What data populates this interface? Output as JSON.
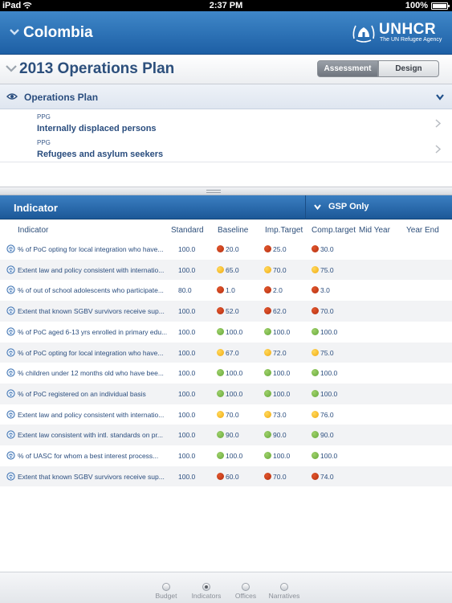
{
  "status_bar": {
    "carrier": "iPad",
    "time": "2:37 PM",
    "battery": "100%"
  },
  "header": {
    "country": "Colombia",
    "logo_name": "UNHCR",
    "logo_tagline": "The UN Refugee Agency"
  },
  "plan": {
    "title": "2013 Operations Plan",
    "segments": [
      {
        "label": "Assessment",
        "selected": true
      },
      {
        "label": "Design",
        "selected": false
      }
    ]
  },
  "operations": {
    "title": "Operations Plan",
    "ppgs": [
      {
        "type": "PPG",
        "name": "Internally displaced persons"
      },
      {
        "type": "PPG",
        "name": "Refugees and asylum seekers"
      }
    ]
  },
  "indicators": {
    "title": "Indicator",
    "filter": "GSP Only",
    "columns": [
      "Indicator",
      "Standard",
      "Baseline",
      "Imp.Target",
      "Comp.target",
      "Mid Year",
      "Year End"
    ],
    "rows": [
      {
        "indicator": "% of PoC opting for local integration who have...",
        "standard": "100.0",
        "baseline": "20.0",
        "baseline_status": "red",
        "imp_target": "25.0",
        "imp_status": "red",
        "comp_target": "30.0",
        "comp_status": "red"
      },
      {
        "indicator": "Extent law and policy consistent with internatio...",
        "standard": "100.0",
        "baseline": "65.0",
        "baseline_status": "yellow",
        "imp_target": "70.0",
        "imp_status": "yellow",
        "comp_target": "75.0",
        "comp_status": "yellow"
      },
      {
        "indicator": "% of out of school adolescents who participate...",
        "standard": "80.0",
        "baseline": "1.0",
        "baseline_status": "red",
        "imp_target": "2.0",
        "imp_status": "red",
        "comp_target": "3.0",
        "comp_status": "red"
      },
      {
        "indicator": "Extent that known SGBV survivors receive sup...",
        "standard": "100.0",
        "baseline": "52.0",
        "baseline_status": "red",
        "imp_target": "62.0",
        "imp_status": "red",
        "comp_target": "70.0",
        "comp_status": "red"
      },
      {
        "indicator": "% of PoC aged 6-13 yrs enrolled in primary edu...",
        "standard": "100.0",
        "baseline": "100.0",
        "baseline_status": "green",
        "imp_target": "100.0",
        "imp_status": "green",
        "comp_target": "100.0",
        "comp_status": "green"
      },
      {
        "indicator": "% of PoC opting for local integration who have...",
        "standard": "100.0",
        "baseline": "67.0",
        "baseline_status": "yellow",
        "imp_target": "72.0",
        "imp_status": "yellow",
        "comp_target": "75.0",
        "comp_status": "yellow"
      },
      {
        "indicator": "% children under 12 months old who have bee...",
        "standard": "100.0",
        "baseline": "100.0",
        "baseline_status": "green",
        "imp_target": "100.0",
        "imp_status": "green",
        "comp_target": "100.0",
        "comp_status": "green"
      },
      {
        "indicator": "% of PoC registered on an individual basis",
        "standard": "100.0",
        "baseline": "100.0",
        "baseline_status": "green",
        "imp_target": "100.0",
        "imp_status": "green",
        "comp_target": "100.0",
        "comp_status": "green"
      },
      {
        "indicator": "Extent law and policy consistent with internatio...",
        "standard": "100.0",
        "baseline": "70.0",
        "baseline_status": "yellow",
        "imp_target": "73.0",
        "imp_status": "yellow",
        "comp_target": "76.0",
        "comp_status": "yellow"
      },
      {
        "indicator": "Extent law consistent with intl. standards on pr...",
        "standard": "100.0",
        "baseline": "90.0",
        "baseline_status": "green",
        "imp_target": "90.0",
        "imp_status": "green",
        "comp_target": "90.0",
        "comp_status": "green"
      },
      {
        "indicator": "% of UASC for whom a best interest process...",
        "standard": "100.0",
        "baseline": "100.0",
        "baseline_status": "green",
        "imp_target": "100.0",
        "imp_status": "green",
        "comp_target": "100.0",
        "comp_status": "green"
      },
      {
        "indicator": "Extent that known SGBV survivors receive sup...",
        "standard": "100.0",
        "baseline": "60.0",
        "baseline_status": "red",
        "imp_target": "70.0",
        "imp_status": "red",
        "comp_target": "74.0",
        "comp_status": "red"
      }
    ]
  },
  "tabs": [
    {
      "label": "Budget",
      "active": false
    },
    {
      "label": "Indicators",
      "active": true
    },
    {
      "label": "Offices",
      "active": false
    },
    {
      "label": "Narratives",
      "active": false
    }
  ],
  "colors": {
    "header_blue": "#1d5fa5",
    "red": "#c8391a",
    "yellow": "#f5bb2a",
    "green": "#7dbb4f"
  }
}
